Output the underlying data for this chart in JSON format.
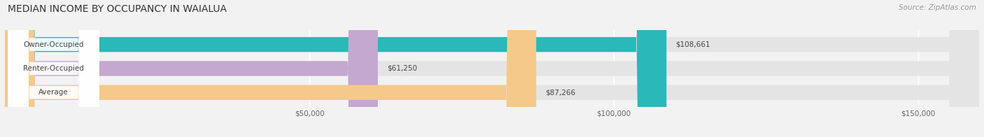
{
  "title": "MEDIAN INCOME BY OCCUPANCY IN WAIALUA",
  "source": "Source: ZipAtlas.com",
  "categories": [
    "Owner-Occupied",
    "Renter-Occupied",
    "Average"
  ],
  "values": [
    108661,
    61250,
    87266
  ],
  "labels": [
    "$108,661",
    "$61,250",
    "$87,266"
  ],
  "bar_colors": [
    "#2ab8b8",
    "#c4a8d0",
    "#f5c98a"
  ],
  "background_color": "#f2f2f2",
  "bar_bg_color": "#e4e4e4",
  "label_bg_color": "#ffffff",
  "xlim_max": 160000,
  "xticks": [
    50000,
    100000,
    150000
  ],
  "xtick_labels": [
    "$50,000",
    "$100,000",
    "$150,000"
  ],
  "figsize": [
    14.06,
    1.96
  ],
  "dpi": 100,
  "title_fontsize": 10,
  "source_fontsize": 7.5,
  "bar_label_fontsize": 7.5,
  "value_label_fontsize": 7.5,
  "tick_fontsize": 7.5
}
